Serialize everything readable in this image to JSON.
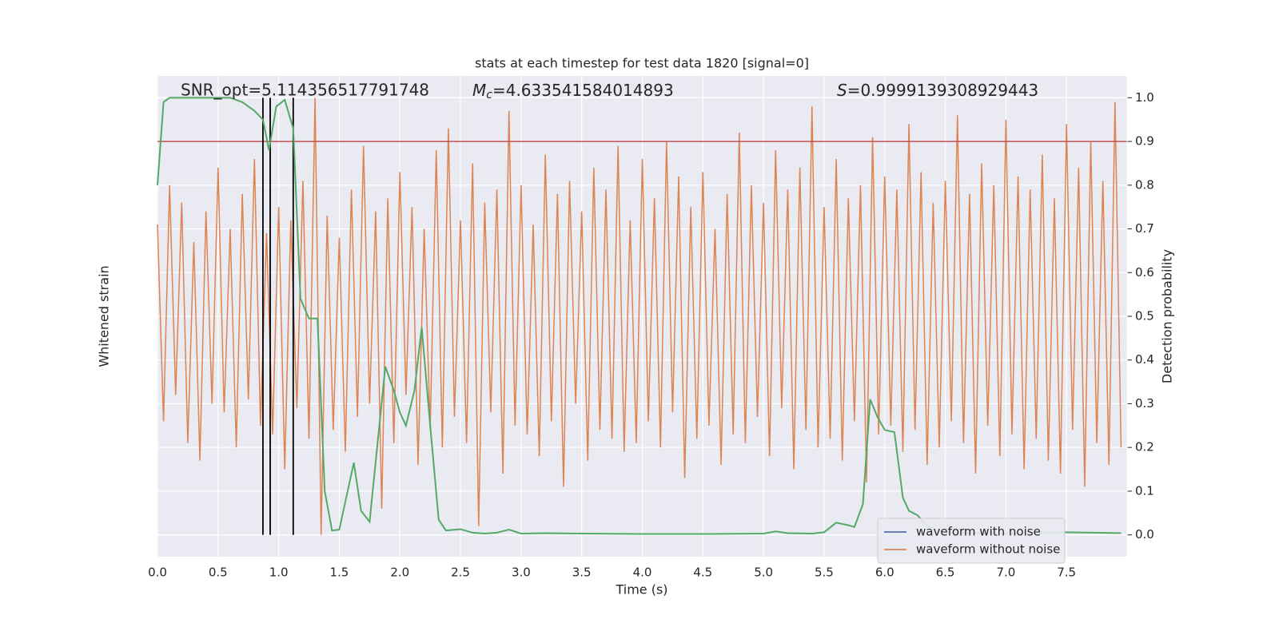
{
  "chart_data": {
    "type": "line",
    "title": "stats at each timestep for test data 1820 [signal=0]",
    "annotations": [
      {
        "text": "SNR_opt=5.114356517791748"
      },
      {
        "symbol": "M",
        "subscript": "c",
        "text": "=4.633541584014893"
      },
      {
        "symbol": "S",
        "text": "=0.9999139308929443"
      }
    ],
    "xlabel": "Time (s)",
    "ylabel": "Whitened strain",
    "y2label": "Detection probability",
    "xlim": [
      0,
      8
    ],
    "ylim": [
      -5.5,
      5.5
    ],
    "y2lim": [
      -0.05,
      1.05
    ],
    "xticks": [
      {
        "value": 0,
        "label": "0.0"
      },
      {
        "value": 0.5,
        "label": "0.5"
      },
      {
        "value": 1,
        "label": "1.0"
      },
      {
        "value": 1.5,
        "label": "1.5"
      },
      {
        "value": 2,
        "label": "2.0"
      },
      {
        "value": 2.5,
        "label": "2.5"
      },
      {
        "value": 3,
        "label": "3.0"
      },
      {
        "value": 3.5,
        "label": "3.5"
      },
      {
        "value": 4,
        "label": "4.0"
      },
      {
        "value": 4.5,
        "label": "4.5"
      },
      {
        "value": 5,
        "label": "5.0"
      },
      {
        "value": 5.5,
        "label": "5.5"
      },
      {
        "value": 6,
        "label": "6.0"
      },
      {
        "value": 6.5,
        "label": "6.5"
      },
      {
        "value": 7,
        "label": "7.0"
      },
      {
        "value": 7.5,
        "label": "7.5"
      }
    ],
    "y2ticks": [
      {
        "value": 0,
        "label": "0.0"
      },
      {
        "value": 0.1,
        "label": "0.1"
      },
      {
        "value": 0.2,
        "label": "0.2"
      },
      {
        "value": 0.3,
        "label": "0.3"
      },
      {
        "value": 0.4,
        "label": "0.4"
      },
      {
        "value": 0.5,
        "label": "0.5"
      },
      {
        "value": 0.6,
        "label": "0.6"
      },
      {
        "value": 0.7,
        "label": "0.7"
      },
      {
        "value": 0.8,
        "label": "0.8"
      },
      {
        "value": 0.9,
        "label": "0.9"
      },
      {
        "value": 1,
        "label": "1.0"
      }
    ],
    "grid": true,
    "legend": "lower right",
    "hlines": [
      {
        "value": 0.9,
        "color": "#c44e52",
        "axis": "y2"
      }
    ],
    "vlines": [
      {
        "value": 0.87,
        "color": "#000000"
      },
      {
        "value": 0.93,
        "color": "#000000"
      },
      {
        "value": 1.12,
        "color": "#000000"
      }
    ],
    "series": [
      {
        "name": "waveform with noise",
        "color": "#4c72b0",
        "axis": "y",
        "x": [],
        "values": []
      },
      {
        "name": "waveform without noise",
        "color": "#dd8452",
        "axis": "y",
        "x": [
          0,
          0.05,
          0.1,
          0.15,
          0.2,
          0.25,
          0.3,
          0.35,
          0.4,
          0.45,
          0.5,
          0.55,
          0.6,
          0.65,
          0.7,
          0.75,
          0.8,
          0.85,
          0.9,
          0.95,
          1,
          1.05,
          1.1,
          1.15,
          1.2,
          1.25,
          1.3,
          1.35,
          1.4,
          1.45,
          1.5,
          1.55,
          1.6,
          1.65,
          1.7,
          1.75,
          1.8,
          1.85,
          1.9,
          1.95,
          2,
          2.05,
          2.1,
          2.15,
          2.2,
          2.25,
          2.3,
          2.35,
          2.4,
          2.45,
          2.5,
          2.55,
          2.6,
          2.65,
          2.7,
          2.75,
          2.8,
          2.85,
          2.9,
          2.95,
          3,
          3.05,
          3.1,
          3.15,
          3.2,
          3.25,
          3.3,
          3.35,
          3.4,
          3.45,
          3.5,
          3.55,
          3.6,
          3.65,
          3.7,
          3.75,
          3.8,
          3.85,
          3.9,
          3.95,
          4,
          4.05,
          4.1,
          4.15,
          4.2,
          4.25,
          4.3,
          4.35,
          4.4,
          4.45,
          4.5,
          4.55,
          4.6,
          4.65,
          4.7,
          4.75,
          4.8,
          4.85,
          4.9,
          4.95,
          5,
          5.05,
          5.1,
          5.15,
          5.2,
          5.25,
          5.3,
          5.35,
          5.4,
          5.45,
          5.5,
          5.55,
          5.6,
          5.65,
          5.7,
          5.75,
          5.8,
          5.85,
          5.9,
          5.95,
          6,
          6.05,
          6.1,
          6.15,
          6.2,
          6.25,
          6.3,
          6.35,
          6.4,
          6.45,
          6.5,
          6.55,
          6.6,
          6.65,
          6.7,
          6.75,
          6.8,
          6.85,
          6.9,
          6.95,
          7,
          7.05,
          7.1,
          7.15,
          7.2,
          7.25,
          7.3,
          7.35,
          7.4,
          7.45,
          7.5,
          7.55,
          7.6,
          7.65,
          7.7,
          7.75,
          7.8,
          7.85,
          7.9,
          7.95
        ],
        "values": [
          2.1,
          -2.4,
          3.0,
          -1.8,
          2.6,
          -2.9,
          1.7,
          -3.3,
          2.4,
          -2.0,
          3.4,
          -2.2,
          2.0,
          -3.0,
          2.8,
          -1.9,
          3.6,
          -2.5,
          1.9,
          -2.7,
          2.5,
          -3.5,
          2.2,
          -2.1,
          3.1,
          -2.8,
          5.0,
          -5.0,
          2.3,
          -2.6,
          1.8,
          -3.1,
          2.9,
          -2.3,
          3.9,
          -2.0,
          2.4,
          -4.4,
          2.7,
          -2.9,
          3.3,
          -1.8,
          2.5,
          -3.4,
          2.0,
          -2.6,
          3.8,
          -3.0,
          4.3,
          -2.3,
          2.2,
          -2.9,
          3.5,
          -4.8,
          2.6,
          -2.2,
          2.9,
          -3.6,
          4.7,
          -2.5,
          3.0,
          -2.7,
          2.1,
          -3.2,
          3.7,
          -2.4,
          2.8,
          -3.9,
          3.1,
          -2.0,
          2.4,
          -3.3,
          3.4,
          -2.6,
          2.9,
          -2.8,
          3.9,
          -3.1,
          2.2,
          -2.9,
          3.6,
          -2.4,
          2.7,
          -3.0,
          4.0,
          -2.2,
          3.2,
          -3.7,
          2.5,
          -2.8,
          3.3,
          -2.5,
          2.0,
          -3.4,
          2.8,
          -2.7,
          4.2,
          -2.9,
          3.0,
          -2.3,
          2.6,
          -3.2,
          3.8,
          -2.1,
          2.9,
          -3.5,
          3.4,
          -2.6,
          4.8,
          -3.0,
          2.5,
          -2.8,
          3.6,
          -3.3,
          2.7,
          -2.4,
          3.0,
          -3.8,
          4.1,
          -2.7,
          3.2,
          -2.5,
          2.9,
          -3.1,
          4.4,
          -2.6,
          3.3,
          -3.4,
          2.6,
          -3.0,
          3.1,
          -2.4,
          4.6,
          -2.9,
          2.8,
          -3.6,
          3.5,
          -2.5,
          3.0,
          -3.2,
          4.5,
          -2.7,
          3.2,
          -3.5,
          2.9,
          -2.8,
          3.7,
          -3.3,
          2.7,
          -3.6,
          4.4,
          -2.6,
          3.4,
          -3.9,
          4.0,
          -2.9,
          3.1,
          -3.4,
          4.9,
          -3.0
        ]
      },
      {
        "color": "#55a868",
        "axis": "y2",
        "x": [
          0,
          0.05,
          0.1,
          0.2,
          0.3,
          0.4,
          0.5,
          0.6,
          0.7,
          0.8,
          0.87,
          0.92,
          0.98,
          1.05,
          1.12,
          1.18,
          1.25,
          1.32,
          1.38,
          1.44,
          1.5,
          1.62,
          1.68,
          1.75,
          1.88,
          1.95,
          2.0,
          2.05,
          2.12,
          2.18,
          2.25,
          2.32,
          2.38,
          2.5,
          2.6,
          2.7,
          2.8,
          2.9,
          3.0,
          3.2,
          3.5,
          4.0,
          4.5,
          5.0,
          5.1,
          5.2,
          5.4,
          5.5,
          5.6,
          5.7,
          5.75,
          5.82,
          5.88,
          5.94,
          6.0,
          6.08,
          6.15,
          6.2,
          6.27,
          6.35,
          6.5,
          7.0,
          7.5,
          7.95
        ],
        "values": [
          0.8,
          0.99,
          1.0,
          1.0,
          1.0,
          1.0,
          1.0,
          1.0,
          0.99,
          0.97,
          0.95,
          0.88,
          0.98,
          0.995,
          0.93,
          0.54,
          0.495,
          0.495,
          0.1,
          0.01,
          0.012,
          0.165,
          0.055,
          0.03,
          0.385,
          0.33,
          0.28,
          0.25,
          0.33,
          0.475,
          0.25,
          0.035,
          0.01,
          0.013,
          0.005,
          0.003,
          0.005,
          0.012,
          0.003,
          0.004,
          0.003,
          0.002,
          0.002,
          0.003,
          0.008,
          0.004,
          0.003,
          0.006,
          0.028,
          0.022,
          0.018,
          0.07,
          0.31,
          0.27,
          0.24,
          0.235,
          0.085,
          0.055,
          0.045,
          0.02,
          0.005,
          0.003,
          0.006,
          0.004
        ]
      }
    ]
  }
}
